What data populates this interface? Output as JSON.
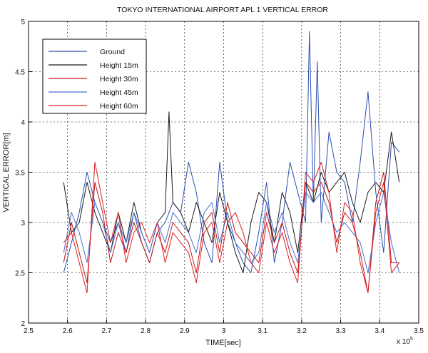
{
  "chart_data": {
    "type": "line",
    "title": "TOKYO INTERNATIONAL AIRPORT APL 1 VERTICAL ERROR",
    "xlabel": "TIME[sec]",
    "ylabel": "VERTICAL ERROR[m]",
    "x_multiplier": "x 10^5",
    "xlim": [
      2.5,
      3.5
    ],
    "ylim": [
      2,
      5
    ],
    "x_ticks": [
      "2.5",
      "2.6",
      "2.7",
      "2.8",
      "2.9",
      "3",
      "3.1",
      "3.2",
      "3.3",
      "3.4",
      "3.5"
    ],
    "y_ticks": [
      "2",
      "2.5",
      "3",
      "3.5",
      "4",
      "4.5",
      "5"
    ],
    "grid": true,
    "legend_position": "top-left",
    "series": [
      {
        "name": "Ground",
        "color": "#2a4fb0",
        "x": [
          2.59,
          2.61,
          2.63,
          2.65,
          2.67,
          2.69,
          2.71,
          2.73,
          2.75,
          2.77,
          2.79,
          2.81,
          2.83,
          2.85,
          2.87,
          2.89,
          2.91,
          2.93,
          2.95,
          2.97,
          2.99,
          3.01,
          3.03,
          3.05,
          3.07,
          3.09,
          3.11,
          3.13,
          3.15,
          3.17,
          3.19,
          3.21,
          3.22,
          3.23,
          3.24,
          3.25,
          3.27,
          3.29,
          3.31,
          3.33,
          3.35,
          3.37,
          3.39,
          3.41,
          3.43,
          3.45
        ],
        "y": [
          2.5,
          2.8,
          3.1,
          3.5,
          3.2,
          3.0,
          2.8,
          3.0,
          2.7,
          3.1,
          2.8,
          2.6,
          2.9,
          3.0,
          3.2,
          3.1,
          3.6,
          3.3,
          2.8,
          2.6,
          3.6,
          3.0,
          2.8,
          2.6,
          2.5,
          2.9,
          3.4,
          2.6,
          3.0,
          3.6,
          3.3,
          3.0,
          4.9,
          3.2,
          4.6,
          3.0,
          3.9,
          3.5,
          3.4,
          3.0,
          3.6,
          4.3,
          3.3,
          2.7,
          3.8,
          3.7
        ]
      },
      {
        "name": "Height 15m",
        "color": "#1a1a1a",
        "x": [
          2.59,
          2.61,
          2.63,
          2.65,
          2.67,
          2.69,
          2.71,
          2.73,
          2.75,
          2.77,
          2.79,
          2.81,
          2.83,
          2.85,
          2.86,
          2.87,
          2.89,
          2.91,
          2.93,
          2.95,
          2.97,
          2.99,
          3.01,
          3.03,
          3.05,
          3.07,
          3.09,
          3.11,
          3.13,
          3.15,
          3.17,
          3.19,
          3.21,
          3.23,
          3.25,
          3.27,
          3.29,
          3.31,
          3.33,
          3.35,
          3.37,
          3.39,
          3.41,
          3.43,
          3.45
        ],
        "y": [
          3.4,
          2.9,
          3.0,
          3.4,
          3.1,
          2.9,
          2.7,
          3.1,
          2.8,
          3.2,
          2.9,
          2.7,
          3.0,
          3.1,
          4.1,
          3.2,
          3.1,
          2.9,
          3.2,
          3.0,
          2.8,
          3.3,
          3.0,
          2.7,
          2.5,
          3.0,
          3.3,
          3.2,
          2.8,
          3.3,
          3.1,
          2.7,
          3.4,
          3.2,
          3.5,
          3.3,
          3.4,
          3.5,
          3.2,
          3.0,
          3.3,
          3.4,
          3.3,
          3.9,
          3.4
        ]
      },
      {
        "name": "Height 30m",
        "color": "#c01818",
        "x": [
          2.59,
          2.61,
          2.63,
          2.65,
          2.67,
          2.69,
          2.71,
          2.73,
          2.75,
          2.77,
          2.79,
          2.81,
          2.83,
          2.85,
          2.87,
          2.89,
          2.91,
          2.93,
          2.95,
          2.97,
          2.99,
          3.01,
          3.03,
          3.05,
          3.07,
          3.09,
          3.11,
          3.13,
          3.15,
          3.17,
          3.19,
          3.21,
          3.23,
          3.25,
          3.27,
          3.29,
          3.31,
          3.33,
          3.35,
          3.37,
          3.39,
          3.41,
          3.43,
          3.45
        ],
        "y": [
          2.6,
          3.0,
          2.7,
          2.4,
          3.4,
          3.1,
          2.6,
          2.9,
          2.7,
          3.0,
          2.8,
          2.6,
          2.9,
          2.7,
          3.0,
          2.9,
          2.8,
          2.5,
          3.0,
          3.1,
          2.7,
          3.2,
          2.9,
          2.8,
          2.7,
          2.6,
          3.1,
          2.8,
          3.0,
          2.7,
          2.5,
          3.4,
          3.3,
          3.4,
          3.2,
          2.8,
          3.1,
          3.0,
          2.7,
          2.3,
          3.2,
          3.5,
          2.6,
          2.6
        ]
      },
      {
        "name": "Height 45m",
        "color": "#4a6fd0",
        "x": [
          2.59,
          2.61,
          2.63,
          2.65,
          2.67,
          2.69,
          2.71,
          2.73,
          2.75,
          2.77,
          2.79,
          2.81,
          2.83,
          2.85,
          2.87,
          2.89,
          2.91,
          2.93,
          2.95,
          2.97,
          2.99,
          3.01,
          3.03,
          3.05,
          3.07,
          3.09,
          3.11,
          3.13,
          3.15,
          3.17,
          3.19,
          3.21,
          3.23,
          3.25,
          3.27,
          3.29,
          3.31,
          3.33,
          3.35,
          3.37,
          3.39,
          3.41,
          3.43,
          3.45
        ],
        "y": [
          2.7,
          3.1,
          2.9,
          2.6,
          3.2,
          3.0,
          2.7,
          3.0,
          2.8,
          3.1,
          2.9,
          2.7,
          3.0,
          2.8,
          3.1,
          3.0,
          2.9,
          2.7,
          3.1,
          3.2,
          2.8,
          3.1,
          2.8,
          2.7,
          2.6,
          2.7,
          3.2,
          2.9,
          3.1,
          2.8,
          2.6,
          3.3,
          3.2,
          3.3,
          3.1,
          2.9,
          3.0,
          2.9,
          2.8,
          2.5,
          3.0,
          3.3,
          2.8,
          2.5
        ]
      },
      {
        "name": "Height 60m",
        "color": "#e02020",
        "x": [
          2.59,
          2.61,
          2.63,
          2.65,
          2.67,
          2.69,
          2.71,
          2.73,
          2.75,
          2.77,
          2.79,
          2.81,
          2.83,
          2.85,
          2.87,
          2.89,
          2.91,
          2.93,
          2.95,
          2.97,
          2.99,
          3.01,
          3.03,
          3.05,
          3.07,
          3.09,
          3.11,
          3.13,
          3.15,
          3.17,
          3.19,
          3.21,
          3.23,
          3.25,
          3.27,
          3.29,
          3.31,
          3.33,
          3.35,
          3.37,
          3.39,
          3.41,
          3.43,
          3.45
        ],
        "y": [
          2.8,
          2.9,
          2.6,
          2.3,
          3.6,
          3.2,
          2.8,
          3.1,
          2.6,
          2.9,
          3.0,
          2.8,
          3.0,
          2.6,
          2.9,
          2.8,
          2.7,
          2.4,
          2.9,
          3.0,
          2.6,
          3.0,
          3.1,
          2.9,
          2.6,
          2.5,
          3.0,
          2.7,
          2.9,
          2.6,
          2.4,
          3.5,
          3.4,
          3.6,
          3.3,
          2.7,
          3.2,
          3.1,
          2.6,
          2.3,
          3.1,
          3.4,
          2.5,
          2.6
        ]
      }
    ]
  }
}
